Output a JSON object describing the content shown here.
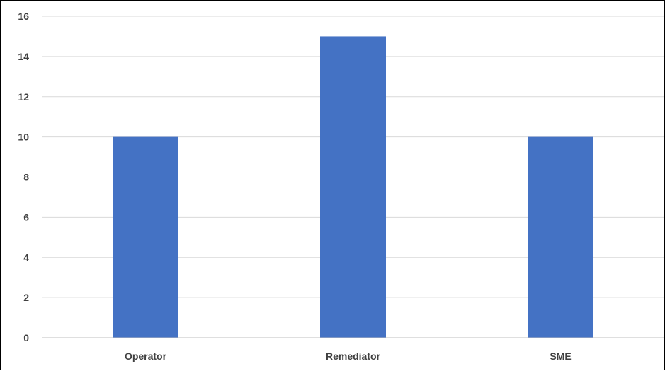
{
  "chart_data": {
    "type": "bar",
    "categories": [
      "Operator",
      "Remediator",
      "SME"
    ],
    "values": [
      10,
      15,
      10
    ],
    "title": "",
    "xlabel": "",
    "ylabel": "",
    "ylim": [
      0,
      16
    ],
    "yticks": [
      0,
      2,
      4,
      6,
      8,
      10,
      12,
      14,
      16
    ],
    "grid": true,
    "legend": "none",
    "colors": {
      "bar": "#4472C4",
      "grid": "#d9d9d9",
      "axis": "#bfbfbf",
      "text": "#404040"
    }
  }
}
